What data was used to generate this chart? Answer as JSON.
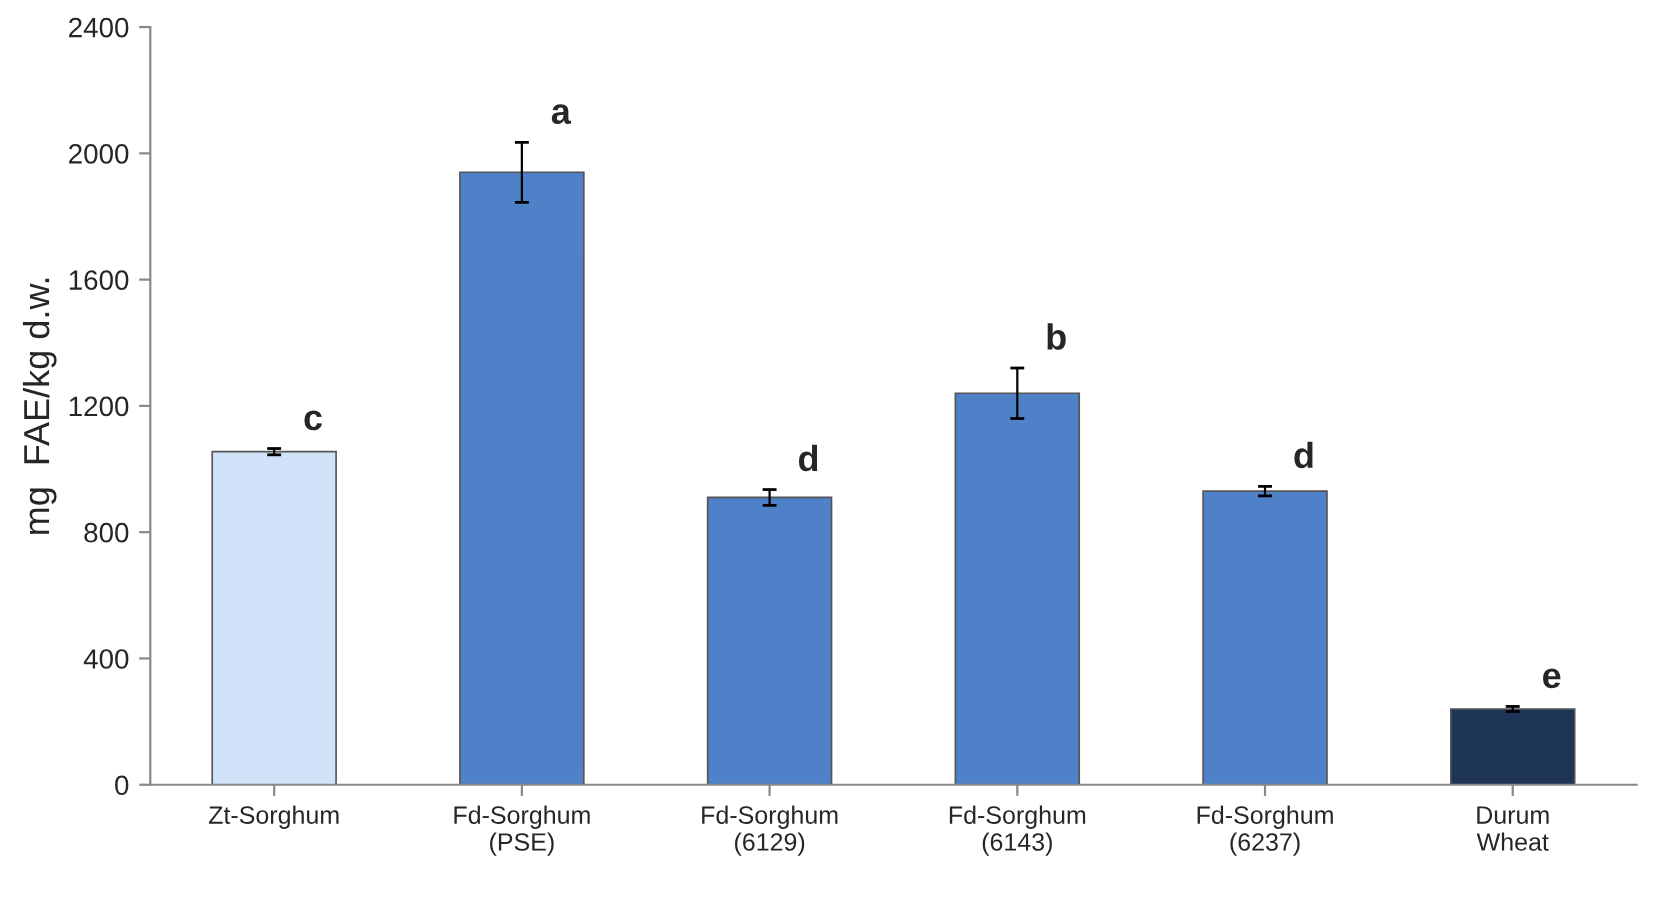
{
  "chart_data": {
    "type": "bar",
    "ylabel": "mg  FAE/kg d.w.",
    "categories": [
      "Zt-Sorghum",
      "Fd-Sorghum\n(PSE)",
      "Fd-Sorghum\n(6129)",
      "Fd-Sorghum\n(6143)",
      "Fd-Sorghum\n(6237)",
      "Durum\nWheat"
    ],
    "values": [
      1055,
      1940,
      910,
      1240,
      930,
      240
    ],
    "errors": [
      10,
      95,
      25,
      80,
      15,
      8
    ],
    "colors": [
      "#cfe2f8",
      "#4f81c9",
      "#4f81c9",
      "#4f81c9",
      "#4f81c9",
      "#1f3558"
    ],
    "ylim": [
      0,
      2400
    ],
    "yticks": [
      0,
      400,
      800,
      1200,
      1600,
      2000,
      2400
    ],
    "grid": false,
    "annotations": [
      {
        "text": "c",
        "x": "Zt-Sorghum",
        "y": 1065
      },
      {
        "text": "a",
        "x": "Fd-Sorghum\n(PSE)",
        "y": 2035
      },
      {
        "text": "d",
        "x": "Fd-Sorghum\n(6129)",
        "y": 935
      },
      {
        "text": "b",
        "x": "Fd-Sorghum\n(6143)",
        "y": 1320
      },
      {
        "text": "d",
        "x": "Fd-Sorghum\n(6237)",
        "y": 945
      },
      {
        "text": "e",
        "x": "Durum\nWheat",
        "y": 248
      }
    ]
  }
}
